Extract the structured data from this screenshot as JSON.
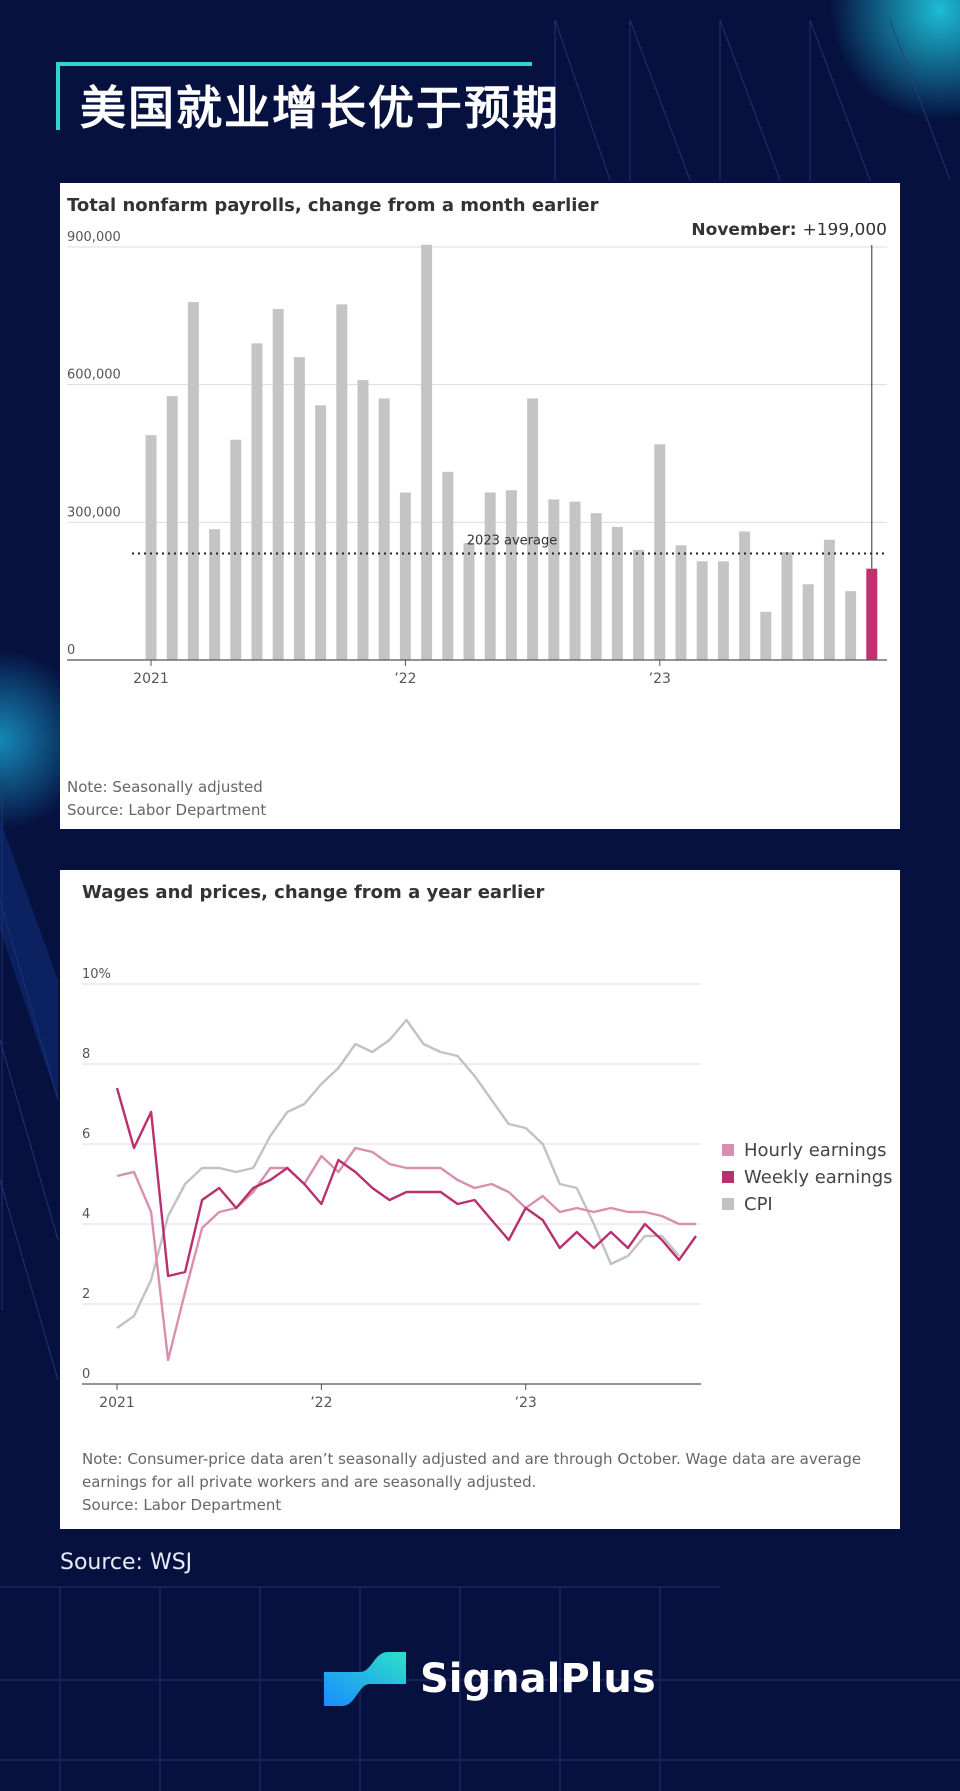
{
  "header": {
    "title": "美国就业增长优于预期"
  },
  "footer": {
    "source": "Source: WSJ",
    "brand": "SignalPlus"
  },
  "chart_data": [
    {
      "type": "bar",
      "title": "Total nonfarm payrolls, change from a month earlier",
      "callout": {
        "label": "November:",
        "value": "+199,000"
      },
      "average": {
        "label": "2023 average",
        "value": 232000
      },
      "ylim": [
        0,
        900000
      ],
      "yticks": [
        0,
        300000,
        600000,
        900000
      ],
      "ytick_labels": [
        "0",
        "300,000",
        "600,000",
        "900,000"
      ],
      "xtick_labels": [
        {
          "label": "2021",
          "index": 0
        },
        {
          "label": "’22",
          "index": 12
        },
        {
          "label": "’23",
          "index": 24
        }
      ],
      "values": [
        490000,
        575000,
        780000,
        285000,
        480000,
        690000,
        765000,
        660000,
        555000,
        775000,
        610000,
        570000,
        365000,
        905000,
        410000,
        255000,
        365000,
        370000,
        570000,
        350000,
        345000,
        320000,
        290000,
        240000,
        470000,
        250000,
        215000,
        215000,
        280000,
        105000,
        235000,
        165000,
        262000,
        150000,
        199000
      ],
      "highlight_index": 34,
      "note": "Note: Seasonally adjusted",
      "source": "Source: Labor Department"
    },
    {
      "type": "line",
      "title": "Wages and prices, change from a year earlier",
      "ylim": [
        0,
        10
      ],
      "yticks": [
        0,
        2,
        4,
        6,
        8,
        10
      ],
      "ytick_labels": [
        "0",
        "2",
        "4",
        "6",
        "8",
        "10%"
      ],
      "x_count": 35,
      "xtick_labels": [
        {
          "label": "2021",
          "index": 0
        },
        {
          "label": "’22",
          "index": 12
        },
        {
          "label": "’23",
          "index": 24
        }
      ],
      "series": [
        {
          "name": "Hourly earnings",
          "color": "#d98fb0",
          "values": [
            5.2,
            5.3,
            4.3,
            0.6,
            2.3,
            3.9,
            4.3,
            4.4,
            4.8,
            5.4,
            5.4,
            5.0,
            5.7,
            5.3,
            5.9,
            5.8,
            5.5,
            5.4,
            5.4,
            5.4,
            5.1,
            4.9,
            5.0,
            4.8,
            4.4,
            4.7,
            4.3,
            4.4,
            4.3,
            4.4,
            4.3,
            4.3,
            4.2,
            4.0,
            4.0
          ]
        },
        {
          "name": "Weekly earnings",
          "color": "#b8306e",
          "values": [
            7.4,
            5.9,
            6.8,
            2.7,
            2.8,
            4.6,
            4.9,
            4.4,
            4.9,
            5.1,
            5.4,
            5.0,
            4.5,
            5.6,
            5.3,
            4.9,
            4.6,
            4.8,
            4.8,
            4.8,
            4.5,
            4.6,
            4.1,
            3.6,
            4.4,
            4.1,
            3.4,
            3.8,
            3.4,
            3.8,
            3.4,
            4.0,
            3.6,
            3.1,
            3.7
          ]
        },
        {
          "name": "CPI",
          "color": "#c2c2c2",
          "values": [
            1.4,
            1.7,
            2.6,
            4.2,
            5.0,
            5.4,
            5.4,
            5.3,
            5.4,
            6.2,
            6.8,
            7.0,
            7.5,
            7.9,
            8.5,
            8.3,
            8.6,
            9.1,
            8.5,
            8.3,
            8.2,
            7.7,
            7.1,
            6.5,
            6.4,
            6.0,
            5.0,
            4.9,
            4.0,
            3.0,
            3.2,
            3.7,
            3.7,
            3.2,
            null
          ]
        }
      ],
      "note": "Note: Consumer-price data aren’t seasonally adjusted and are through October. Wage data are average earnings for all private workers and are seasonally adjusted.",
      "source": "Source: Labor Department"
    }
  ]
}
